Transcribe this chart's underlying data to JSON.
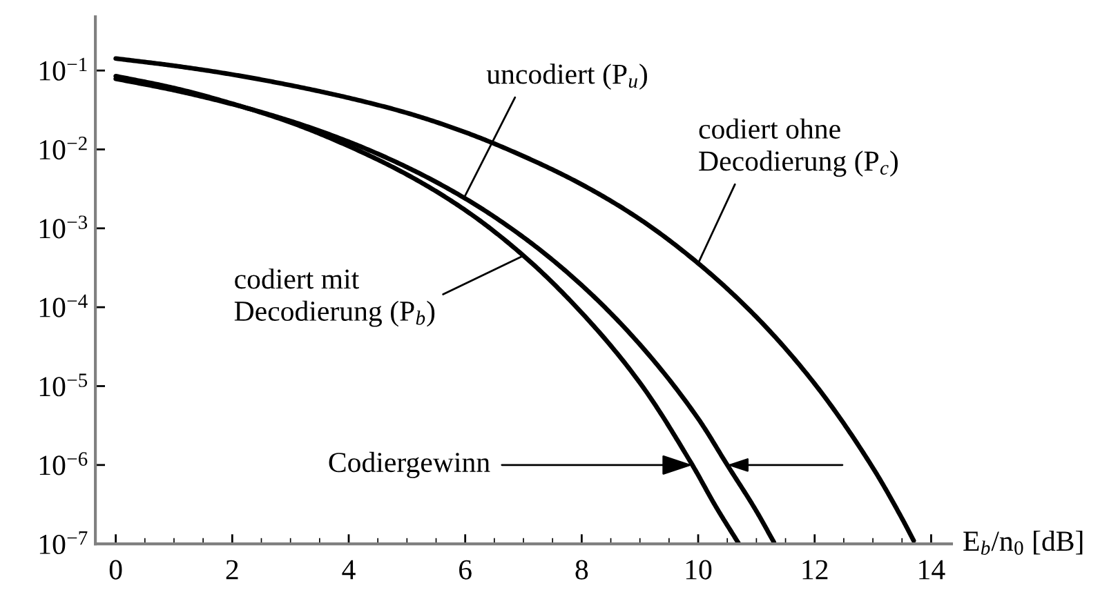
{
  "chart_data": {
    "type": "line",
    "log": "y",
    "grid": false,
    "legend": false,
    "marker": "none",
    "line_style": "solid",
    "xlabel": "E$_{b}$/n$_{0}$ [dB]",
    "xlim": [
      -0.35,
      14.35
    ],
    "xticks": [
      0,
      2,
      4,
      6,
      8,
      10,
      12,
      14
    ],
    "ylim": [
      1e-07,
      0.48
    ],
    "yticks": [
      {
        "value": 0.1,
        "label": "10$^{−1}$"
      },
      {
        "value": 0.01,
        "label": "10$^{−2}$"
      },
      {
        "value": 0.001,
        "label": "10$^{−3}$"
      },
      {
        "value": 0.0001,
        "label": "10$^{−4}$"
      },
      {
        "value": 1e-05,
        "label": "10$^{−5}$"
      },
      {
        "value": 1e-06,
        "label": "10$^{−6}$"
      },
      {
        "value": 1e-07,
        "label": "10$^{−7}$"
      }
    ],
    "series": [
      {
        "color": "#000000",
        "x": [
          0,
          1,
          2,
          3,
          4,
          5,
          6,
          7,
          8,
          9,
          10,
          10.5,
          11,
          11.3
        ],
        "values": [
          0.0786,
          0.0563,
          0.0375,
          0.0229,
          0.0125,
          0.00595,
          0.00239,
          0.00077,
          0.00019,
          3.36e-05,
          3.87e-06,
          1e-06,
          2.6e-07,
          1.05e-07
        ]
      },
      {
        "color": "#000000",
        "x": [
          0,
          1,
          2,
          3,
          4,
          5,
          6,
          7,
          8,
          9,
          9.9,
          10.3,
          10.7
        ],
        "values": [
          0.085,
          0.06,
          0.038,
          0.022,
          0.011,
          0.0048,
          0.0017,
          0.00045,
          8.5e-05,
          1.1e-05,
          1e-06,
          3e-07,
          1e-07
        ]
      },
      {
        "color": "#000000",
        "x": [
          0,
          1,
          2,
          3,
          4,
          5,
          6,
          7,
          8,
          9,
          10,
          11,
          12,
          13,
          13.5,
          13.7
        ],
        "values": [
          0.142,
          0.115,
          0.089,
          0.065,
          0.045,
          0.029,
          0.0165,
          0.0082,
          0.0036,
          0.0013,
          0.00036,
          7.5e-05,
          1.07e-05,
          9.2e-07,
          2.1e-07,
          1.1e-07
        ]
      }
    ],
    "annotations": [
      {
        "text": "uncodiert (P$_{u}$)",
        "x": 6.0,
        "y": 0.0026
      },
      {
        "text": "codiert mit\nDecodierung (P$_{b}$)",
        "x": 7.0,
        "y": 0.00045
      },
      {
        "text": "codiert ohne\nDecodierung (P$_{c}$)",
        "x": 10.0,
        "y": 0.00036
      },
      {
        "text": "Codiergewinn",
        "x": 9.9,
        "y": 1e-06
      }
    ]
  }
}
